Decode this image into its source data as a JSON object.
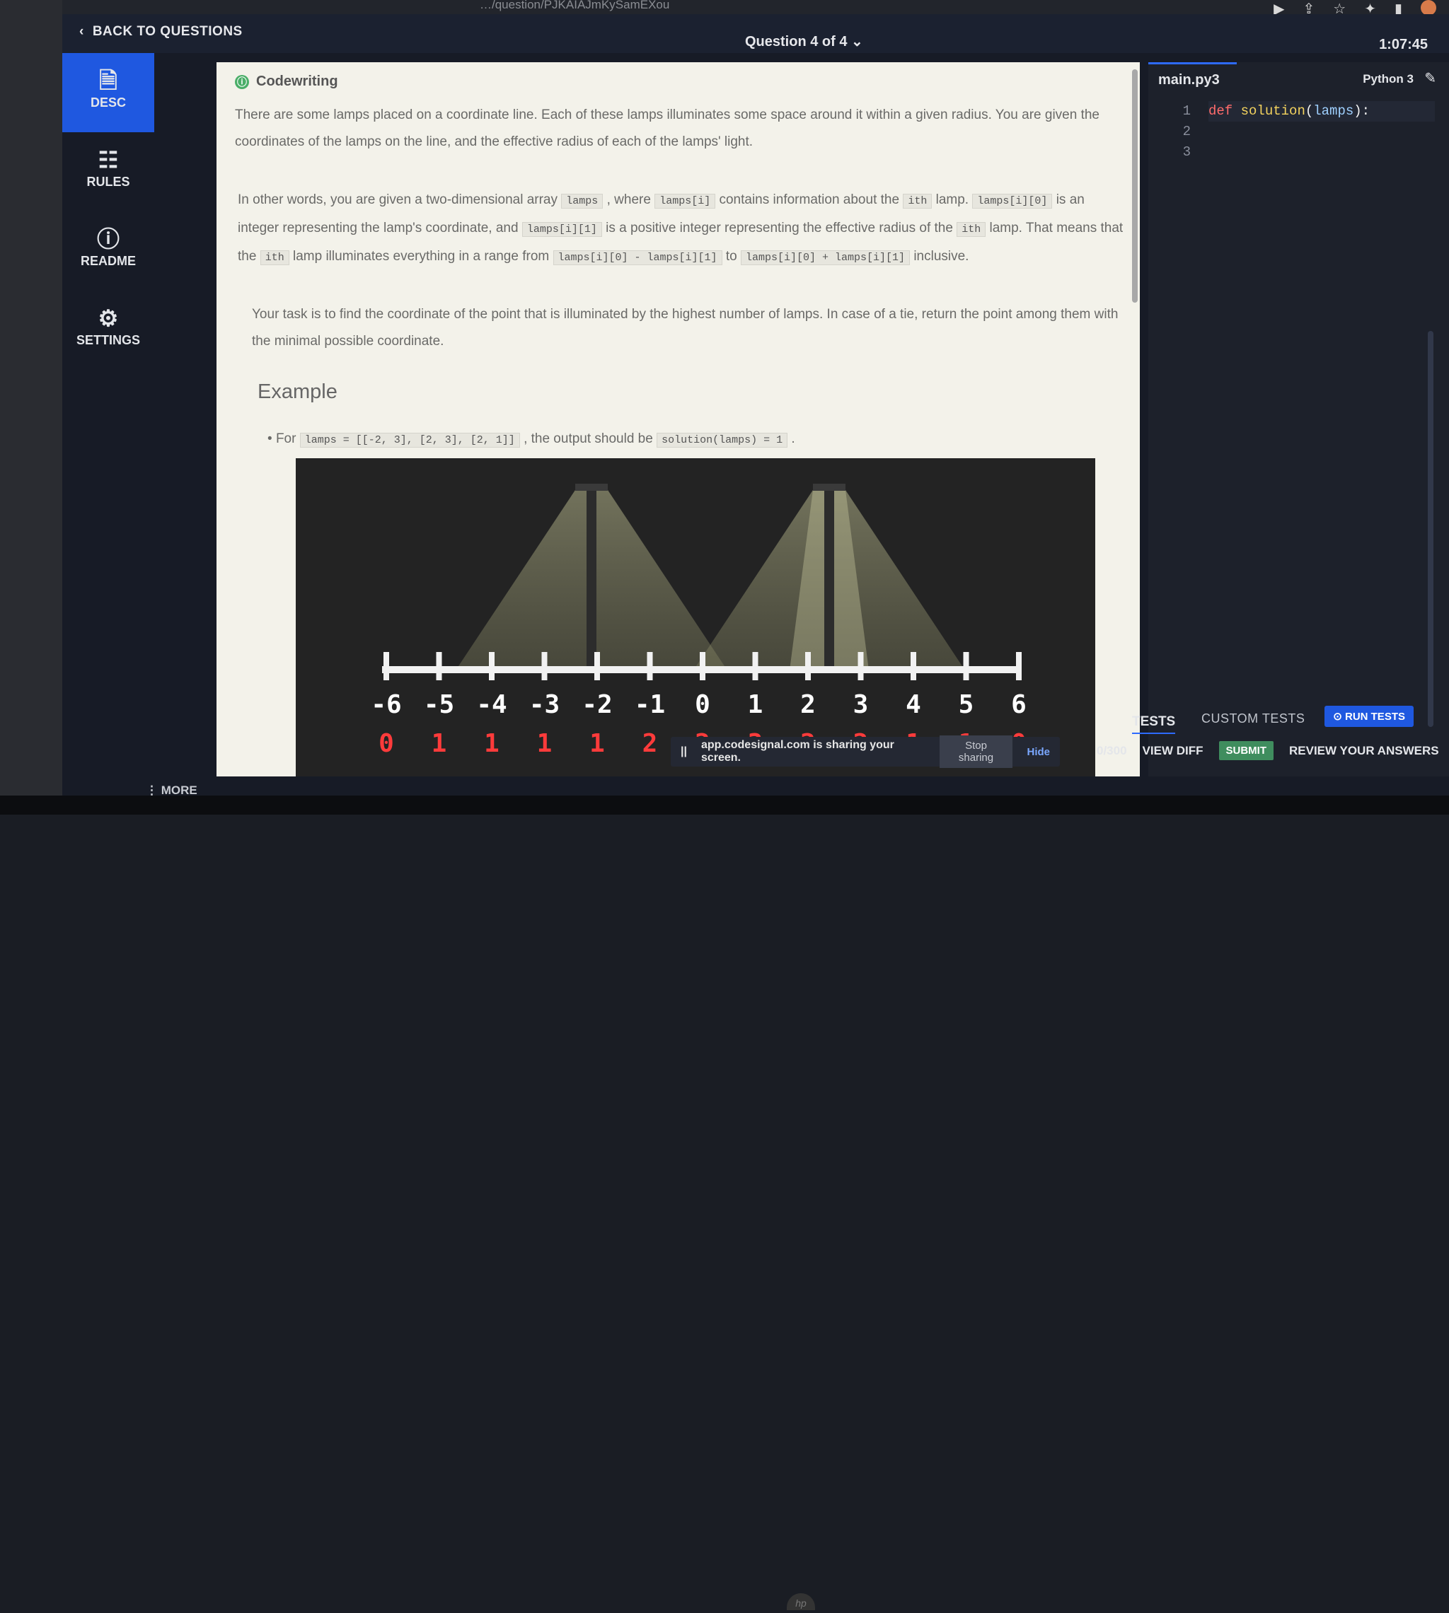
{
  "browser": {
    "url": "…/question/PJKAIAJmKySamEXou"
  },
  "topbar": {
    "back_label": "BACK TO QUESTIONS",
    "question_nav": "Question 4 of 4",
    "timer": "1:07:45"
  },
  "sidebar": {
    "items": [
      {
        "label": "DESC",
        "icon": "document-icon"
      },
      {
        "label": "RULES",
        "icon": "list-icon"
      },
      {
        "label": "README",
        "icon": "info-icon"
      },
      {
        "label": "SETTINGS",
        "icon": "gear-icon"
      }
    ],
    "more_label": "MORE"
  },
  "problem": {
    "type_label": "Codewriting",
    "para1": "There are some lamps placed on a coordinate line. Each of these lamps illuminates some space around it within a given radius. You are given the coordinates of the lamps on the line, and the effective radius of each of the lamps' light.",
    "p2_a": "In other words, you are given a two-dimensional array",
    "p2_code1": "lamps",
    "p2_b": ", where",
    "p2_code2": "lamps[i]",
    "p2_c": "contains information about the",
    "p2_code3": "ith",
    "p2_d": "lamp.",
    "p2_code4": "lamps[i][0]",
    "p2_e": "is an integer representing the lamp's coordinate, and",
    "p2_code5": "lamps[i][1]",
    "p2_f": "is a positive integer representing the effective radius of the",
    "p2_code6": "ith",
    "p2_g": "lamp.",
    "p2_h": "That means that the",
    "p2_code7": "ith",
    "p2_i": "lamp illuminates everything in a range from",
    "p2_code8": "lamps[i][0] - lamps[i][1]",
    "p2_j": "to",
    "p2_code9": "lamps[i][0] + lamps[i][1]",
    "p2_k": "inclusive.",
    "para3": "Your task is to find the coordinate of the point that is illuminated by the highest number of lamps. In case of a tie, return the point among them with the minimal possible coordinate.",
    "example_heading": "Example",
    "example_for": "For",
    "example_code1": "lamps = [[-2, 3], [2, 3], [2, 1]]",
    "example_mid": ", the output should be",
    "example_code2": "solution(lamps) = 1",
    "example_end": "."
  },
  "figure": {
    "axis_labels": [
      "-6",
      "-5",
      "-4",
      "-3",
      "-2",
      "-1",
      "0",
      "1",
      "2",
      "3",
      "4",
      "5",
      "6"
    ],
    "counts": [
      "0",
      "1",
      "1",
      "1",
      "1",
      "2",
      "2",
      "3",
      "2",
      "2",
      "1",
      "1",
      "0"
    ]
  },
  "editor": {
    "filename": "main.py3",
    "language": "Python 3",
    "line_numbers": [
      "1",
      "2",
      "3"
    ],
    "code_kw": "def",
    "code_fn": "solution",
    "code_arg": "lamps",
    "code_open": "(",
    "code_close": "):"
  },
  "tests": {
    "tab_tests": "TESTS",
    "tab_custom": "CUSTOM TESTS",
    "run_label": "RUN TESTS",
    "score": "0/300",
    "view_diff": "VIEW DIFF",
    "submit": "SUBMIT",
    "review": "REVIEW YOUR ANSWERS"
  },
  "share": {
    "text": "app.codesignal.com is sharing your screen.",
    "stop": "Stop sharing",
    "hide": "Hide"
  }
}
